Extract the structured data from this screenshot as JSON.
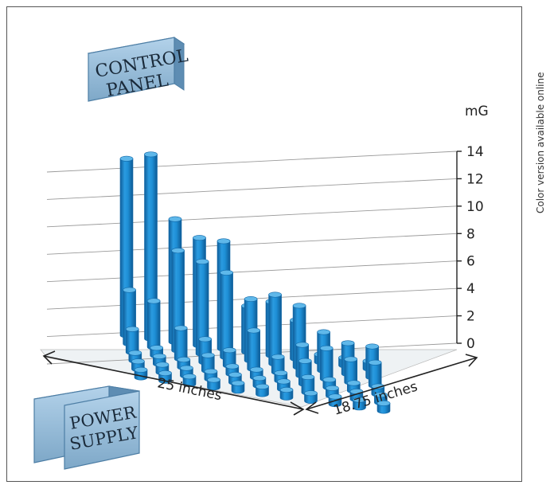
{
  "side_note": "Color version available online",
  "labels": {
    "control_panel": [
      "CONTROL",
      "PANEL"
    ],
    "power_supply": [
      "POWER",
      "SUPPLY"
    ],
    "dim_front": "25 inches",
    "dim_side": "18.75 inches"
  },
  "colors": {
    "cylinder_main": "#1e8fd6",
    "cylinder_dark": "#1168a8",
    "cylinder_top": "#5fb8ea",
    "box_face": "#8fb8d8",
    "floor": "#eef2f4"
  },
  "chart_data": {
    "type": "3d-bar",
    "ylabel": "mG",
    "ylim": [
      0,
      14
    ],
    "yticks": [
      0,
      2,
      4,
      6,
      8,
      10,
      12,
      14
    ],
    "grid": true,
    "rows": 6,
    "columns": 11,
    "values": [
      [
        11.5,
        12,
        8,
        7,
        7,
        3,
        3.5,
        2.5,
        0.5,
        0.5,
        0.5
      ],
      [
        3.5,
        3,
        6.5,
        6,
        5.5,
        4,
        4.5,
        4,
        2.5,
        2,
        2
      ],
      [
        1.5,
        0.5,
        2,
        1.5,
        1,
        2.5,
        1,
        2,
        2,
        1.5,
        1.5
      ],
      [
        0.5,
        0.5,
        0.5,
        1,
        0.5,
        0.5,
        0.5,
        1.5,
        0.5,
        0.5,
        0.5
      ],
      [
        0.5,
        0.5,
        0.5,
        0.5,
        0.5,
        0.5,
        0.5,
        1,
        0.5,
        0.5,
        0.5
      ],
      [
        0.5,
        0.5,
        0.5,
        0.5,
        0.5,
        0.5,
        0.5,
        0.5,
        0.5,
        0.5,
        0.5
      ]
    ]
  }
}
